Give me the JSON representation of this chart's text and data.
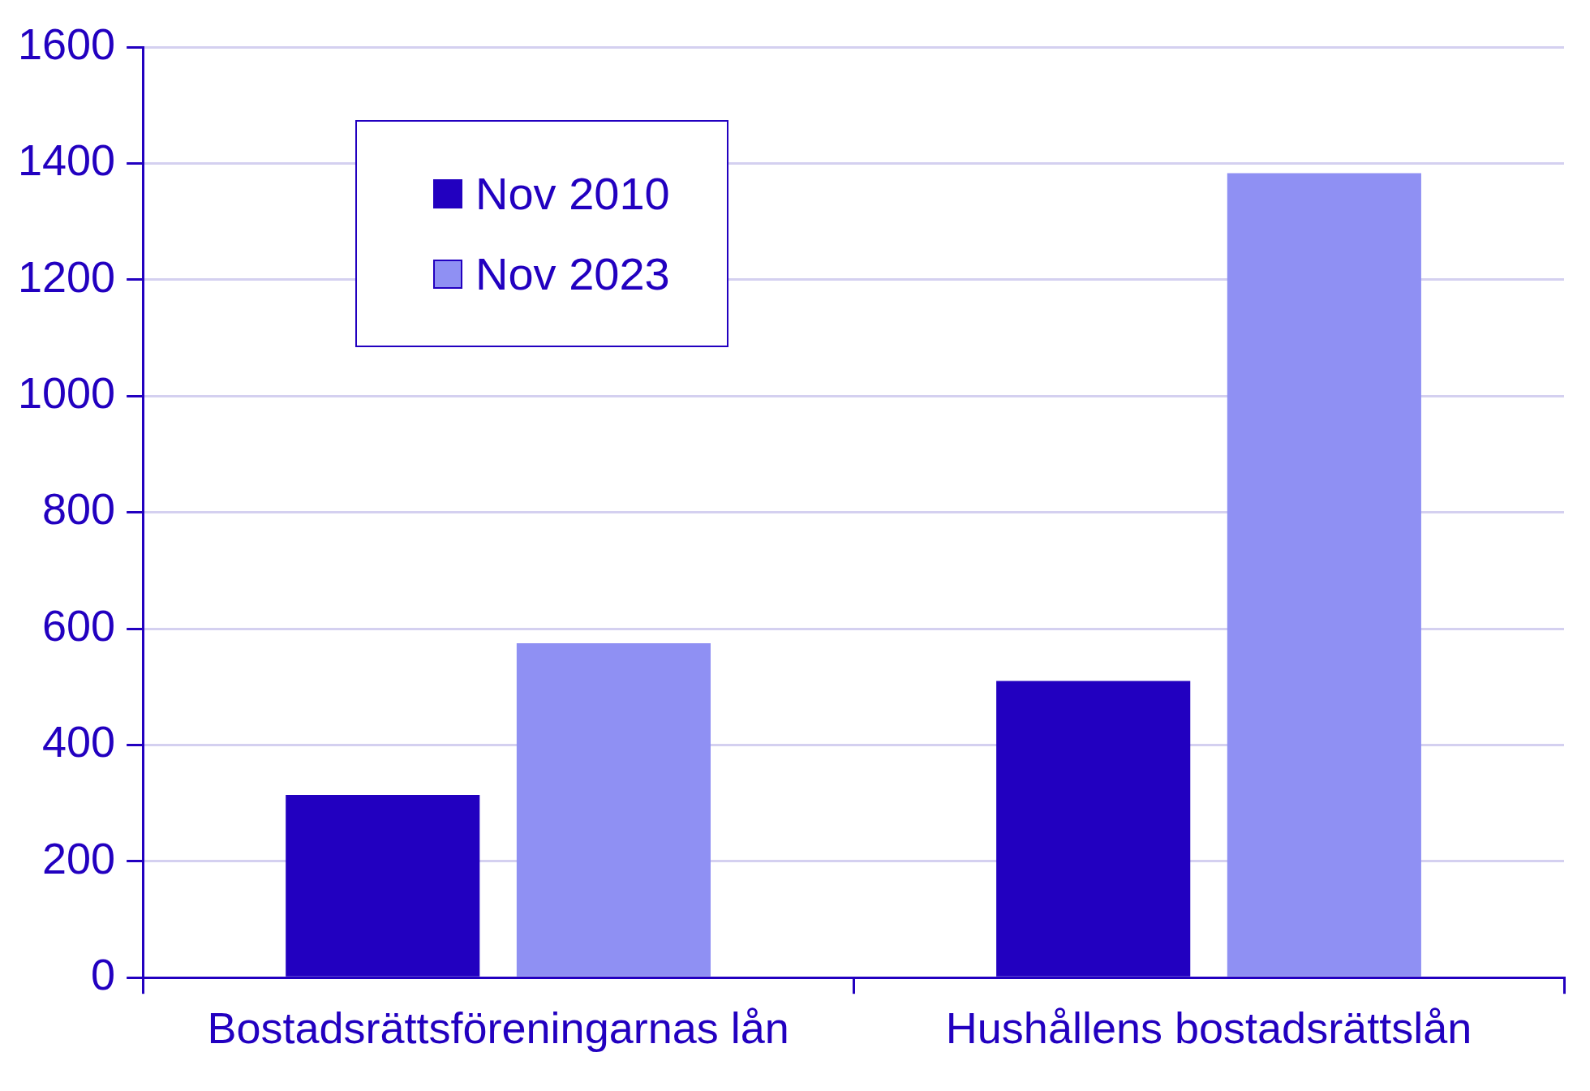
{
  "chart_data": {
    "type": "bar",
    "categories": [
      "Bostadsrättsföreningarnas lån",
      "Hushållens bostadsrättslån"
    ],
    "series": [
      {
        "name": "Nov 2010",
        "color": "#2200c0",
        "values": [
          314,
          510
        ]
      },
      {
        "name": "Nov 2023",
        "color": "#8f90f3",
        "values": [
          575,
          1383
        ]
      }
    ],
    "ylim": [
      0,
      1600
    ],
    "yticks": [
      0,
      200,
      400,
      600,
      800,
      1000,
      1200,
      1400,
      1600
    ],
    "grid": "y",
    "legend": "top left"
  }
}
